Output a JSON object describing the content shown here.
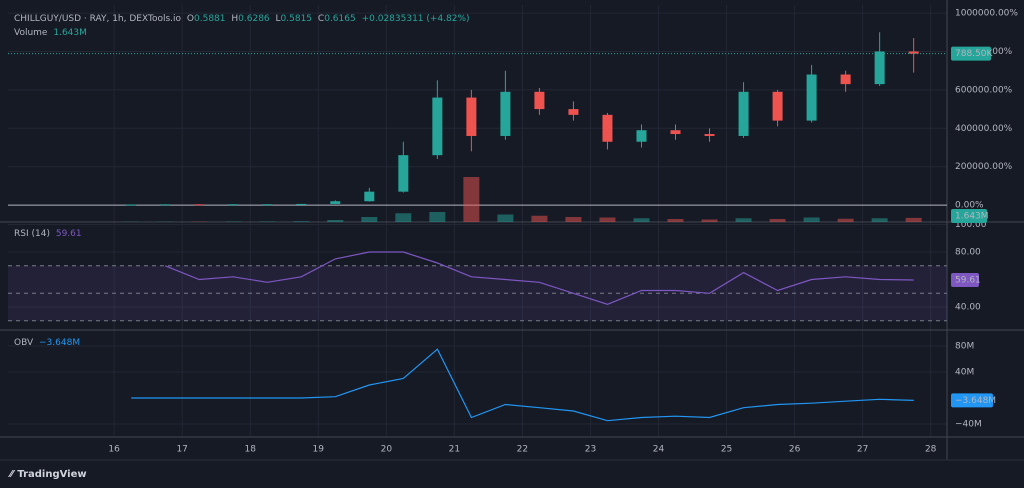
{
  "header": {
    "symbol": "CHILLGUY/USD · RAY, 1h, DEXTools.io",
    "o_label": "O",
    "o": "0.5881",
    "h_label": "H",
    "h": "0.6286",
    "l_label": "L",
    "l": "0.5815",
    "c_label": "C",
    "c": "0.6165",
    "change": "+0.02835311 (+4.82%)"
  },
  "footer": {
    "brand": "TradingView"
  },
  "chart_data": [
    {
      "type": "candlestick",
      "x": [
        16.25,
        16.75,
        17.25,
        17.75,
        18.25,
        18.75,
        19.25,
        19.75,
        20.25,
        20.75,
        21.25,
        21.75,
        22.25,
        22.75,
        23.25,
        23.75,
        24.25,
        24.75,
        25.25,
        25.75,
        26.25,
        26.75,
        27.25,
        27.75
      ],
      "open": [
        2800,
        3000,
        4000,
        3500,
        4500,
        4500,
        6000,
        20000,
        70000,
        260000,
        560000,
        360000,
        590000,
        500000,
        470000,
        330000,
        390000,
        370000,
        360000,
        590000,
        440000,
        680000,
        630000,
        800000
      ],
      "high": [
        3500,
        4500,
        4500,
        5000,
        5500,
        7000,
        25000,
        90000,
        330000,
        650000,
        600000,
        700000,
        610000,
        540000,
        480000,
        420000,
        420000,
        400000,
        640000,
        600000,
        730000,
        700000,
        900000,
        870000
      ],
      "low": [
        2500,
        2800,
        3200,
        3300,
        4000,
        4300,
        5500,
        18000,
        65000,
        240000,
        280000,
        340000,
        470000,
        440000,
        290000,
        300000,
        340000,
        330000,
        350000,
        410000,
        430000,
        590000,
        620000,
        690000
      ],
      "close": [
        3000,
        4000,
        3500,
        4500,
        4500,
        6000,
        20000,
        70000,
        260000,
        560000,
        360000,
        590000,
        500000,
        470000,
        330000,
        390000,
        370000,
        360000,
        590000,
        440000,
        680000,
        630000,
        800000,
        788500
      ],
      "color_up": "#26a69a",
      "color_down": "#ef5350",
      "ylim": [
        -88000,
        1042000
      ],
      "yticks": [
        {
          "value": 0,
          "label": "0.00%"
        },
        {
          "value": 200000,
          "label": "200000.00%"
        },
        {
          "value": 400000,
          "label": "400000.00%"
        },
        {
          "value": 600000,
          "label": "600000.00%"
        },
        {
          "value": 800000,
          "label": "800000.00%"
        },
        {
          "value": 1000000,
          "label": "1000000.00%"
        }
      ],
      "last_value": 788500,
      "last_label": "788.50K"
    },
    {
      "type": "bar",
      "name": "Volume",
      "last_label": "1.643M",
      "x": [
        16.25,
        16.75,
        17.25,
        17.75,
        18.25,
        18.75,
        19.25,
        19.75,
        20.25,
        20.75,
        21.25,
        21.75,
        22.25,
        22.75,
        23.25,
        23.75,
        24.25,
        24.75,
        25.25,
        25.75,
        26.25,
        26.75,
        27.25,
        27.75
      ],
      "values": [
        100000,
        100000,
        150000,
        200000,
        200000,
        300000,
        800000,
        2000000,
        3500000,
        4000000,
        18000000,
        3000000,
        2500000,
        2000000,
        1800000,
        1500000,
        1200000,
        1000000,
        1500000,
        1200000,
        1800000,
        1300000,
        1500000,
        1643000
      ],
      "ylim": [
        0,
        20000000
      ]
    },
    {
      "type": "line",
      "name": "RSI (14)",
      "last_label": "59.61",
      "color": "#7e57c2",
      "x": [
        16.25,
        16.75,
        17.25,
        17.75,
        18.25,
        18.75,
        19.25,
        19.75,
        20.25,
        20.75,
        21.25,
        21.75,
        22.25,
        22.75,
        23.25,
        23.75,
        24.25,
        24.75,
        25.25,
        25.75,
        26.25,
        26.75,
        27.25,
        27.75
      ],
      "values": [
        null,
        70,
        60,
        62,
        58,
        62,
        75,
        80,
        80,
        72,
        62,
        60,
        58,
        50,
        42,
        52,
        52,
        50,
        65,
        52,
        60,
        62,
        60,
        59.61
      ],
      "ylim": [
        23.3,
        101.8
      ],
      "yticks": [
        {
          "value": 100,
          "label": "100.00"
        },
        {
          "value": 80,
          "label": "80.00"
        },
        {
          "value": 40,
          "label": "40.00"
        }
      ],
      "levels": [
        70,
        50,
        30
      ]
    },
    {
      "type": "line",
      "name": "OBV",
      "last_label": "−3.648M",
      "color": "#2196f3",
      "x": [
        16.25,
        16.75,
        17.25,
        17.75,
        18.25,
        18.75,
        19.25,
        19.75,
        20.25,
        20.75,
        21.25,
        21.75,
        22.25,
        22.75,
        23.25,
        23.75,
        24.25,
        24.75,
        25.25,
        25.75,
        26.25,
        26.75,
        27.25,
        27.75
      ],
      "values": [
        0,
        0,
        0,
        0,
        0,
        0,
        2000000,
        20000000,
        30000000,
        75000000,
        -30000000,
        -10000000,
        -15000000,
        -20000000,
        -35000000,
        -30000000,
        -28000000,
        -30000000,
        -15000000,
        -10000000,
        -8000000,
        -5000000,
        -2000000,
        -3648000
      ],
      "ylim": [
        -60000000,
        104600000
      ],
      "yticks": [
        {
          "value": 80000000,
          "label": "80M"
        },
        {
          "value": 40000000,
          "label": "40M"
        },
        {
          "value": -40000000,
          "label": "−40M"
        }
      ],
      "xlim": [
        14.44,
        28.24
      ],
      "xticks": [
        16,
        17,
        18,
        19,
        20,
        21,
        22,
        23,
        24,
        25,
        26,
        27,
        28
      ]
    }
  ]
}
